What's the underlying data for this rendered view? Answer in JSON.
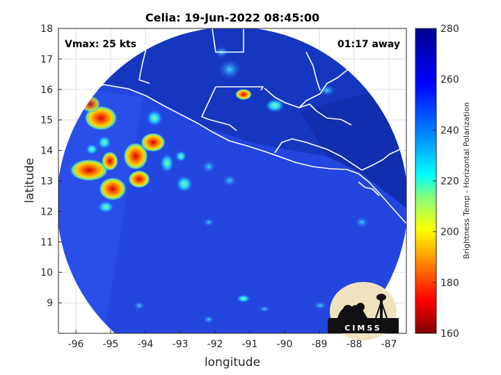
{
  "title": "Celia: 19-Jun-2022 08:45:00",
  "vmax_text": "Vmax: 25 kts",
  "away_text": "01:17 away",
  "xlabel": "longitude",
  "ylabel": "latitude",
  "x_ticks": [
    "-96",
    "-95",
    "-94",
    "-93",
    "-92",
    "-91",
    "-90",
    "-89",
    "-88",
    "-87"
  ],
  "y_ticks": [
    "18",
    "17",
    "16",
    "15",
    "14",
    "13",
    "12",
    "11",
    "10",
    "9"
  ],
  "colorbar": {
    "label": "Brightness Temp - Horizontal Polarization",
    "ticks": [
      "280",
      "260",
      "240",
      "220",
      "200",
      "180",
      "160"
    ],
    "range": [
      160,
      280
    ],
    "colormap": "jet",
    "colors": [
      "#7f0000",
      "#ff0000",
      "#ff8000",
      "#ffff00",
      "#80ff80",
      "#00ffff",
      "#0080ff",
      "#0000ff",
      "#00008f"
    ]
  },
  "logo": {
    "text": "CIMSS",
    "type": "cimss-logo"
  },
  "map": {
    "lon_range": [
      -96.5,
      -86.5
    ],
    "lat_range": [
      8,
      18
    ],
    "grid": true,
    "swath_background": "#2346df",
    "outside_swath": "#0d1a7a",
    "boundary_color": "#ffffff"
  }
}
